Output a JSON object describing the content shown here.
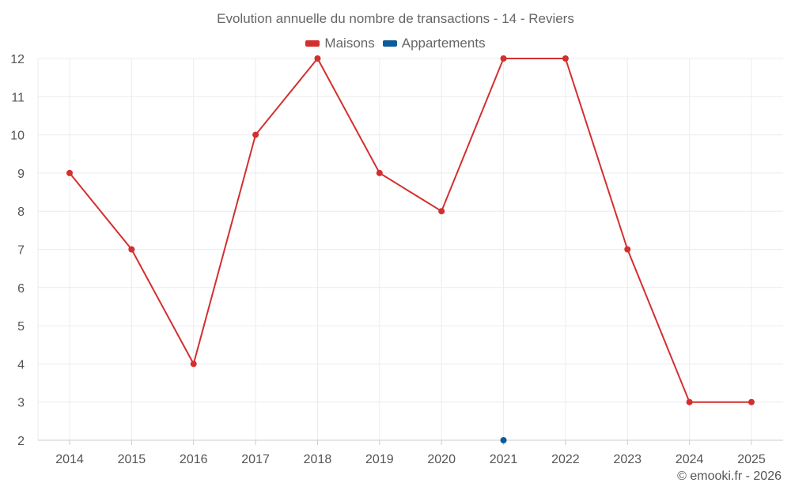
{
  "chart_data": {
    "type": "line",
    "title": "Evolution annuelle du nombre de transactions - 14 - Reviers",
    "categories": [
      "2014",
      "2015",
      "2016",
      "2017",
      "2018",
      "2019",
      "2020",
      "2021",
      "2022",
      "2023",
      "2024",
      "2025"
    ],
    "series": [
      {
        "name": "Maisons",
        "color": "#d32f2f",
        "values": [
          9,
          7,
          4,
          10,
          12,
          9,
          8,
          12,
          12,
          7,
          3,
          3
        ]
      },
      {
        "name": "Appartements",
        "color": "#0d5b9a",
        "values": [
          null,
          null,
          null,
          null,
          null,
          null,
          null,
          2,
          null,
          null,
          null,
          null
        ]
      }
    ],
    "yticks": [
      2,
      3,
      4,
      5,
      6,
      7,
      8,
      9,
      10,
      11,
      12
    ],
    "ylim": [
      2,
      12
    ],
    "xlabel": "",
    "ylabel": "",
    "grid": true,
    "legend_position": "top-center"
  },
  "credit": "© emooki.fr - 2026"
}
